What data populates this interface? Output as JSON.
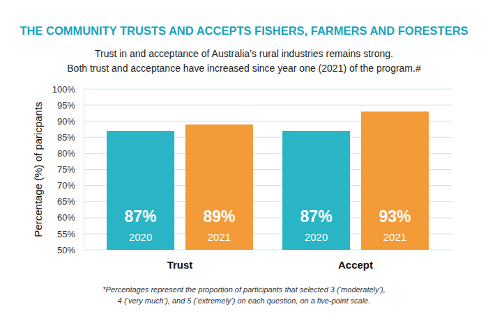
{
  "chart_data": {
    "type": "bar",
    "title": "THE COMMUNITY TRUSTS AND ACCEPTS FISHERS, FARMERS AND FORESTERS",
    "subtitle": [
      "Trust in and acceptance of Australia’s rural industries remains strong.",
      "Both trust and acceptance have increased since year one (2021) of the program.#"
    ],
    "y_label": "Percentage (%) of paricpants",
    "categories": [
      "Trust",
      "Accept"
    ],
    "series": [
      {
        "name": "2020",
        "color": "#29b5c6",
        "values": [
          87,
          87
        ],
        "value_labels": [
          "87%",
          "87%"
        ]
      },
      {
        "name": "2021",
        "color": "#f39b38",
        "values": [
          89,
          93
        ],
        "value_labels": [
          "89%",
          "93%"
        ]
      }
    ],
    "ylim": [
      50,
      100
    ],
    "yticks": [
      {
        "value": 50,
        "label": "50%"
      },
      {
        "value": 55,
        "label": "55%"
      },
      {
        "value": 60,
        "label": "60%"
      },
      {
        "value": 65,
        "label": "65%"
      },
      {
        "value": 70,
        "label": "70%"
      },
      {
        "value": 75,
        "label": "75%"
      },
      {
        "value": 80,
        "label": "80%"
      },
      {
        "value": 85,
        "label": "85%"
      },
      {
        "value": 90,
        "label": "90%"
      },
      {
        "value": 95,
        "label": "95%"
      },
      {
        "value": 100,
        "label": "100%"
      }
    ],
    "grid": true,
    "data_labels": true,
    "footnote": [
      "*Percentages represent the proportion of participants that selected 3 (‘moderately’),",
      "4 (‘very much’), and 5 (‘extremely’) on each question, on a five-point scale."
    ]
  }
}
